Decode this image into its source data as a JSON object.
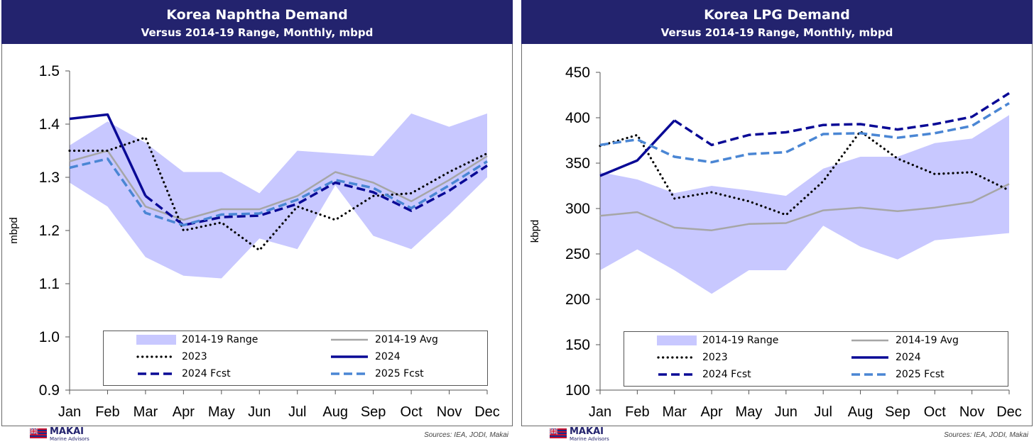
{
  "footer": {
    "logo_name": "MAKAI",
    "logo_sub": "Marine Advisors",
    "source": "Sources: IEA, JODI, Makai"
  },
  "colors": {
    "range": "#c8c8ff",
    "avg": "#a6a6a6",
    "y2023": "#000000",
    "y2024": "#0a0a96",
    "fcst2024": "#0a0a96",
    "fcst2025": "#4a86d4",
    "banner": "#23236e"
  },
  "chart_data": [
    {
      "type": "line",
      "title": "Korea Naphtha Demand",
      "subtitle": "Versus 2014-19 Range, Monthly, mbpd",
      "ylabel": "mbpd",
      "ylim": [
        0.9,
        1.5
      ],
      "yticks": [
        "0.9",
        "1.0",
        "1.1",
        "1.2",
        "1.3",
        "1.4",
        "1.5"
      ],
      "categories": [
        "Jan",
        "Feb",
        "Mar",
        "Apr",
        "May",
        "Jun",
        "Jul",
        "Aug",
        "Sep",
        "Oct",
        "Nov",
        "Dec"
      ],
      "range": {
        "name": "2014-19 Range",
        "low": [
          1.29,
          1.245,
          1.15,
          1.115,
          1.11,
          1.185,
          1.165,
          1.285,
          1.19,
          1.165,
          1.23,
          1.3
        ],
        "high": [
          1.36,
          1.405,
          1.365,
          1.31,
          1.31,
          1.27,
          1.35,
          1.345,
          1.34,
          1.42,
          1.395,
          1.42
        ]
      },
      "series": [
        {
          "name": "2014-19 Avg",
          "key": "avg",
          "values": [
            1.33,
            1.35,
            1.245,
            1.22,
            1.24,
            1.24,
            1.265,
            1.31,
            1.29,
            1.255,
            1.295,
            1.34
          ]
        },
        {
          "name": "2023",
          "key": "y2023",
          "values": [
            1.35,
            1.35,
            1.375,
            1.2,
            1.215,
            1.163,
            1.245,
            1.22,
            1.265,
            1.27,
            1.31,
            1.345
          ]
        },
        {
          "name": "2024",
          "key": "y2024",
          "values": [
            1.41,
            1.418,
            1.265,
            null,
            null,
            null,
            null,
            null,
            null,
            null,
            null,
            null
          ]
        },
        {
          "name": "2024 Fcst",
          "key": "fcst2024",
          "values": [
            null,
            null,
            1.265,
            1.21,
            1.225,
            1.228,
            1.25,
            1.29,
            1.272,
            1.237,
            1.275,
            1.322
          ]
        },
        {
          "name": "2025 Fcst",
          "key": "fcst2025",
          "values": [
            1.318,
            1.335,
            1.233,
            1.21,
            1.23,
            1.232,
            1.258,
            1.295,
            1.28,
            1.242,
            1.285,
            1.33
          ]
        }
      ],
      "legend": "bottom"
    },
    {
      "type": "line",
      "title": "Korea LPG Demand",
      "subtitle": "Versus 2014-19 Range, Monthly, mbpd",
      "ylabel": "kbpd",
      "ylim": [
        100,
        450
      ],
      "yticks": [
        "100",
        "150",
        "200",
        "250",
        "300",
        "350",
        "400",
        "450"
      ],
      "categories": [
        "Jan",
        "Feb",
        "Mar",
        "Apr",
        "May",
        "Jun",
        "Jul",
        "Aug",
        "Sep",
        "Oct",
        "Nov",
        "Dec"
      ],
      "range": {
        "name": "2014-19 Range",
        "low": [
          232,
          255,
          232,
          206,
          232,
          232,
          281,
          258,
          244,
          265,
          269,
          273
        ],
        "high": [
          340,
          332,
          317,
          325,
          320,
          314,
          344,
          357,
          357,
          372,
          377,
          403
        ]
      },
      "series": [
        {
          "name": "2014-19 Avg",
          "key": "avg",
          "values": [
            292,
            296,
            279,
            276,
            283,
            284,
            298,
            301,
            297,
            301,
            307,
            327
          ]
        },
        {
          "name": "2023",
          "key": "y2023",
          "values": [
            369,
            381,
            311,
            318,
            308,
            293,
            330,
            385,
            355,
            338,
            340,
            320
          ]
        },
        {
          "name": "2024",
          "key": "y2024",
          "values": [
            336,
            353,
            397,
            null,
            null,
            null,
            null,
            null,
            null,
            null,
            null,
            null
          ]
        },
        {
          "name": "2024 Fcst",
          "key": "fcst2024",
          "values": [
            null,
            null,
            397,
            370,
            381,
            384,
            392,
            393,
            387,
            393,
            401,
            427
          ]
        },
        {
          "name": "2025 Fcst",
          "key": "fcst2025",
          "values": [
            370,
            376,
            357,
            351,
            360,
            362,
            382,
            383,
            378,
            383,
            391,
            416
          ]
        }
      ],
      "legend": "bottom"
    }
  ]
}
